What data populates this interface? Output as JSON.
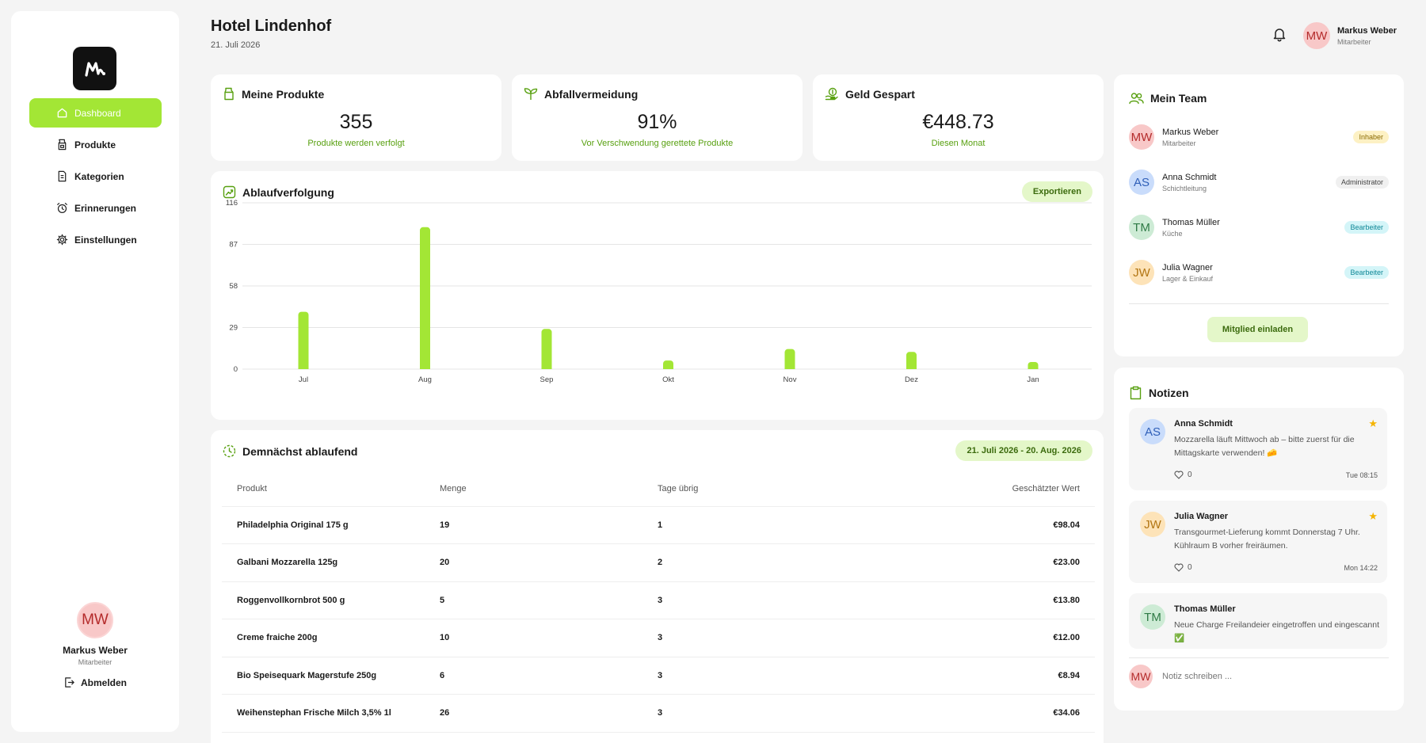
{
  "sidebar": {
    "items": [
      {
        "label": "Dashboard",
        "icon": "home-icon",
        "active": true
      },
      {
        "label": "Produkte",
        "icon": "package-icon"
      },
      {
        "label": "Kategorien",
        "icon": "document-icon"
      },
      {
        "label": "Erinnerungen",
        "icon": "alarm-clock-icon"
      },
      {
        "label": "Einstellungen",
        "icon": "gear-icon"
      }
    ],
    "user": {
      "initials": "MW",
      "name": "Markus Weber",
      "role": "Mitarbeiter"
    },
    "logout_label": "Abmelden"
  },
  "header": {
    "title": "Hotel Lindenhof",
    "date": "21. Juli 2026",
    "user": {
      "initials": "MW",
      "name": "Markus Weber",
      "role": "Mitarbeiter"
    }
  },
  "stats": [
    {
      "title": "Meine Produkte",
      "value": "355",
      "sub": "Produkte werden verfolgt",
      "icon": "milk-carton-icon"
    },
    {
      "title": "Abfallvermeidung",
      "value": "91%",
      "sub": "Vor Verschwendung gerettete Produkte",
      "icon": "sprout-icon"
    },
    {
      "title": "Geld Gespart",
      "value": "€448.73",
      "sub": "Diesen Monat",
      "icon": "money-hand-icon"
    }
  ],
  "chart_card": {
    "title": "Ablaufverfolgung",
    "export_label": "Exportieren"
  },
  "chart_data": {
    "type": "bar",
    "categories": [
      "Jul",
      "Aug",
      "Sep",
      "Okt",
      "Nov",
      "Dez",
      "Jan"
    ],
    "values": [
      40,
      99,
      28,
      6,
      14,
      12,
      5
    ],
    "ylim": [
      0,
      116
    ],
    "yticks": [
      "0",
      "29",
      "58",
      "87",
      "116"
    ],
    "grid": true,
    "color": "#a3e635"
  },
  "expiring": {
    "title": "Demnächst ablaufend",
    "date_range": "21. Juli 2026 - 20. Aug. 2026",
    "columns": [
      "Produkt",
      "Menge",
      "Tage übrig",
      "Geschätzter Wert"
    ],
    "rows": [
      [
        "Philadelphia Original 175 g",
        "19",
        "1",
        "€98.04"
      ],
      [
        "Galbani Mozzarella 125g",
        "20",
        "2",
        "€23.00"
      ],
      [
        "Roggenvollkornbrot 500 g",
        "5",
        "3",
        "€13.80"
      ],
      [
        "Creme fraiche 200g",
        "10",
        "3",
        "€12.00"
      ],
      [
        "Bio Speisequark Magerstufe 250g",
        "6",
        "3",
        "€8.94"
      ],
      [
        "Weihenstephan Frische Milch 3,5% 1l",
        "26",
        "3",
        "€34.06"
      ]
    ]
  },
  "team": {
    "title": "Mein Team",
    "members": [
      {
        "initials": "MW",
        "name": "Markus Weber",
        "role": "Mitarbeiter",
        "badge": "Inhaber",
        "avatar_bg": "#f8c8c8",
        "avatar_fg": "#b42b2b",
        "badge_bg": "#fdf1c4",
        "badge_fg": "#8a6a00"
      },
      {
        "initials": "AS",
        "name": "Anna Schmidt",
        "role": "Schichtleitung",
        "badge": "Administrator",
        "avatar_bg": "#c9dcfb",
        "avatar_fg": "#2f5fb8",
        "badge_bg": "#f0f0f0",
        "badge_fg": "#444444"
      },
      {
        "initials": "TM",
        "name": "Thomas Müller",
        "role": "Küche",
        "badge": "Bearbeiter",
        "avatar_bg": "#cdebd5",
        "avatar_fg": "#2e7a45",
        "badge_bg": "#d4f5f8",
        "badge_fg": "#0e8796"
      },
      {
        "initials": "JW",
        "name": "Julia Wagner",
        "role": "Lager & Einkauf",
        "badge": "Bearbeiter",
        "avatar_bg": "#fde3b8",
        "avatar_fg": "#b27512",
        "badge_bg": "#d4f5f8",
        "badge_fg": "#0e8796"
      }
    ],
    "invite_label": "Mitglied einladen"
  },
  "notes": {
    "title": "Notizen",
    "items": [
      {
        "initials": "AS",
        "author": "Anna Schmidt",
        "text": "Mozzarella läuft Mittwoch ab – bitte zuerst für die Mittagskarte verwenden! 🧀",
        "likes": "0",
        "time": "Tue 08:15",
        "starred": true,
        "avatar_bg": "#c9dcfb",
        "avatar_fg": "#2f5fb8"
      },
      {
        "initials": "JW",
        "author": "Julia Wagner",
        "text": "Transgourmet-Lieferung kommt Donnerstag 7 Uhr. Kühlraum B vorher freiräumen.",
        "likes": "0",
        "time": "Mon 14:22",
        "starred": true,
        "avatar_bg": "#fde3b8",
        "avatar_fg": "#b27512"
      },
      {
        "initials": "TM",
        "author": "Thomas Müller",
        "text": "Neue Charge Freilandeier eingetroffen und eingescannt ✅",
        "starred": false,
        "avatar_bg": "#cdebd5",
        "avatar_fg": "#2e7a45"
      }
    ],
    "input": {
      "initials": "MW",
      "placeholder": "Notiz schreiben ..."
    }
  }
}
